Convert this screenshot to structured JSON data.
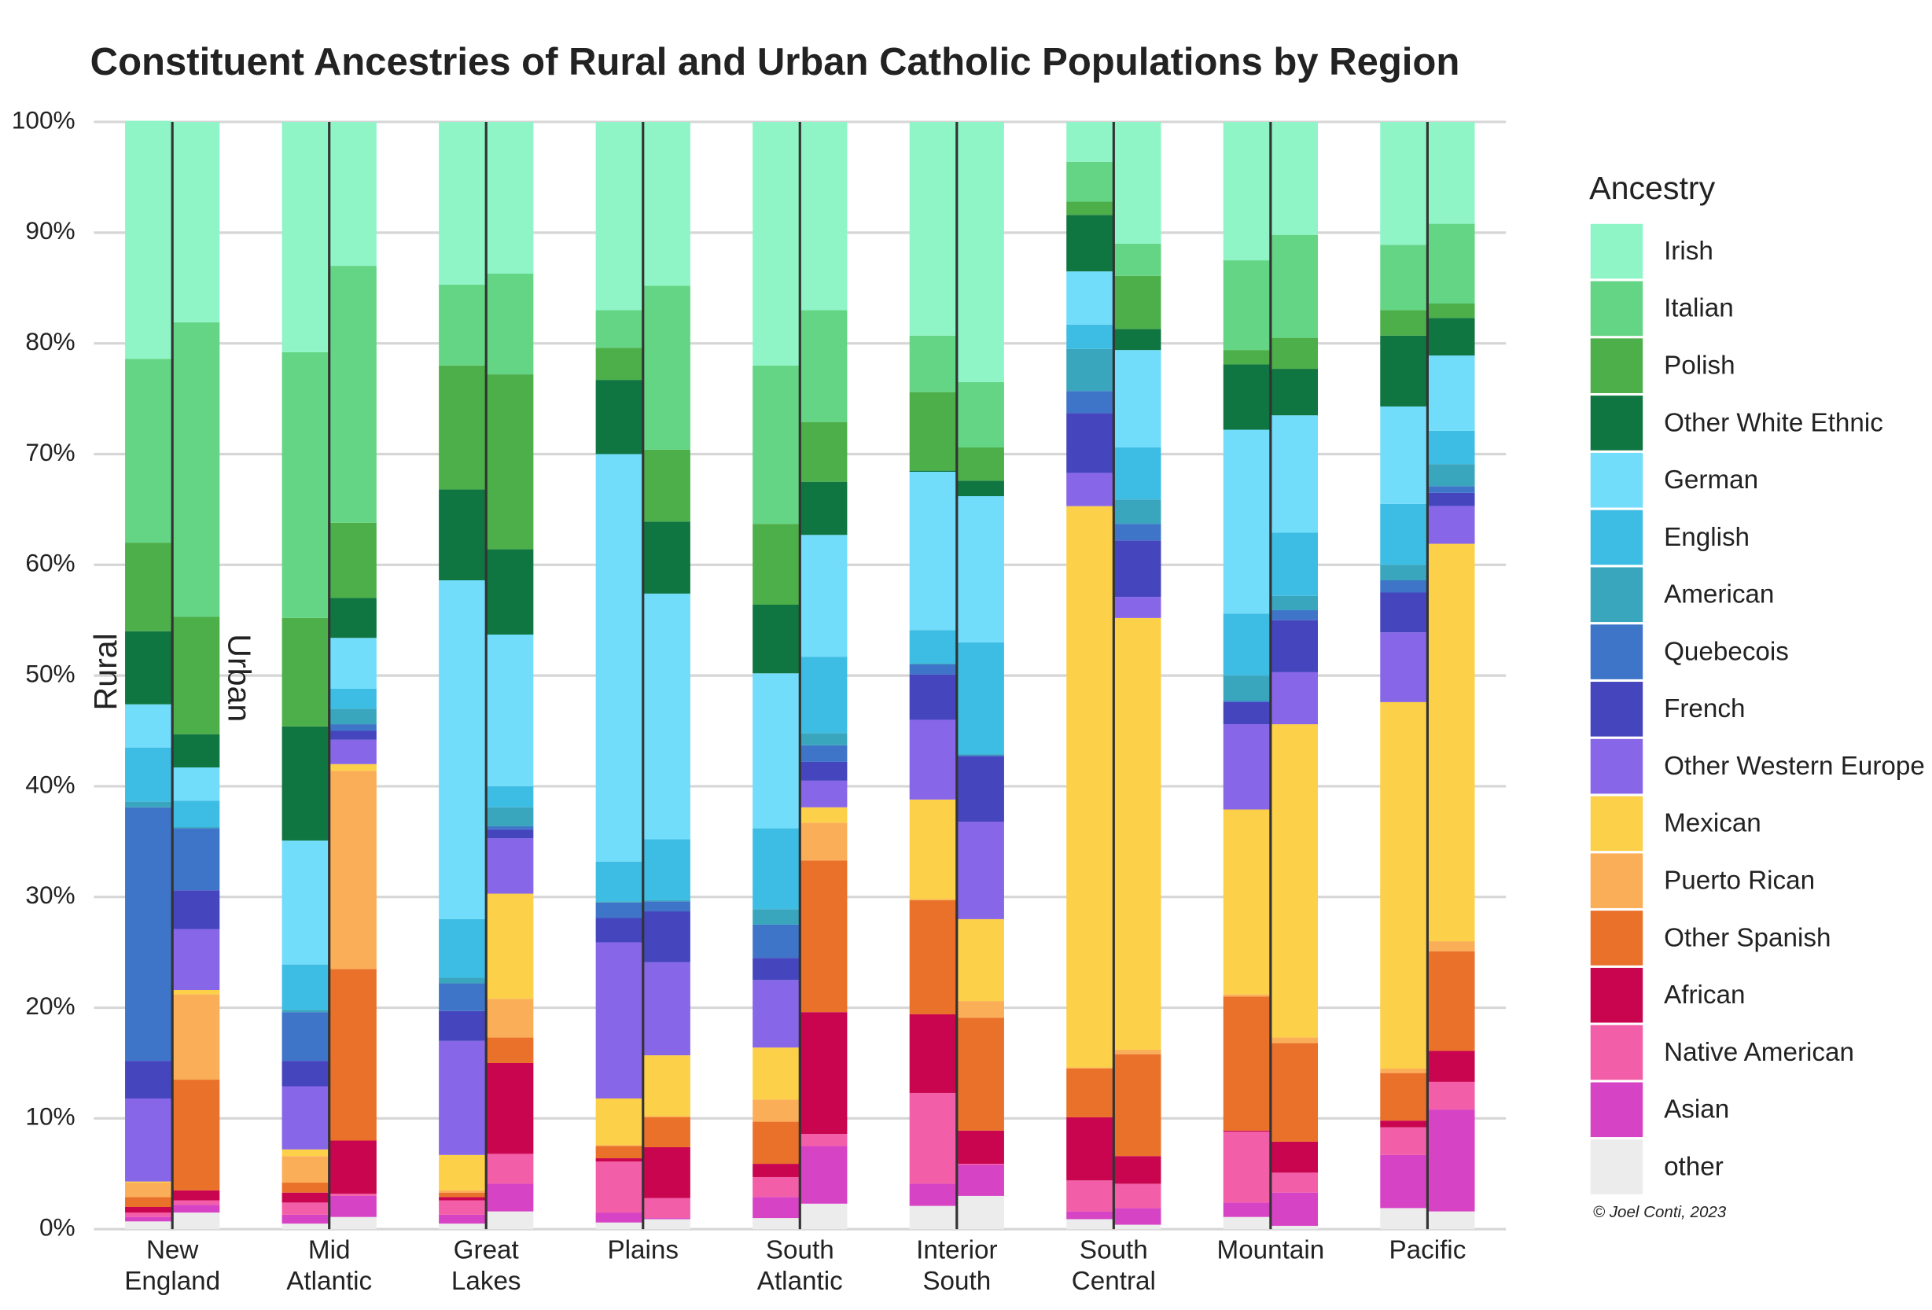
{
  "chart_data": {
    "type": "grouped-stacked-bar",
    "title": "Constituent Ancestries of Rural and Urban Catholic Populations by Region",
    "credit": "© Joel Conti, 2023",
    "legend_title": "Ancestry",
    "bar_labels": [
      "Rural",
      "Urban"
    ],
    "categories": [
      "New England",
      "Mid Atlantic",
      "Great Lakes",
      "Plains",
      "South Atlantic",
      "Interior South",
      "South Central",
      "Mountain",
      "Pacific"
    ],
    "ylim": [
      0,
      100
    ],
    "yticks": [
      {
        "value": 0,
        "label": "0%"
      },
      {
        "value": 10,
        "label": "10%"
      },
      {
        "value": 20,
        "label": "20%"
      },
      {
        "value": 30,
        "label": "30%"
      },
      {
        "value": 40,
        "label": "40%"
      },
      {
        "value": 50,
        "label": "50%"
      },
      {
        "value": 60,
        "label": "60%"
      },
      {
        "value": 70,
        "label": "70%"
      },
      {
        "value": 80,
        "label": "80%"
      },
      {
        "value": 90,
        "label": "90%"
      },
      {
        "value": 100,
        "label": "100%"
      }
    ],
    "grid": true,
    "legend": "right",
    "series": [
      {
        "name": "Irish",
        "color": "#8ff5c7",
        "rural": [
          21.5,
          20.8,
          14.7,
          17.0,
          22.0,
          19.3,
          3.6,
          12.5,
          11.1
        ],
        "urban": [
          18.1,
          13.0,
          13.7,
          14.8,
          17.0,
          23.5,
          11.0,
          10.2,
          9.2
        ]
      },
      {
        "name": "Italian",
        "color": "#64d584",
        "rural": [
          16.6,
          24.0,
          7.3,
          3.4,
          14.3,
          5.1,
          3.6,
          8.1,
          5.9
        ],
        "urban": [
          26.6,
          23.2,
          9.1,
          14.8,
          10.1,
          5.9,
          2.9,
          9.3,
          7.2
        ]
      },
      {
        "name": "Polish",
        "color": "#4daf4a",
        "rural": [
          8.0,
          9.8,
          11.2,
          2.9,
          7.3,
          7.1,
          1.2,
          1.3,
          2.3
        ],
        "urban": [
          10.6,
          6.8,
          15.8,
          6.5,
          5.4,
          3.0,
          4.8,
          2.8,
          1.3
        ]
      },
      {
        "name": "Other White Ethnic",
        "color": "#0f7541",
        "rural": [
          6.6,
          10.3,
          8.2,
          6.7,
          6.2,
          0.1,
          5.1,
          5.9,
          6.4
        ],
        "urban": [
          3.0,
          3.6,
          7.7,
          6.5,
          4.8,
          1.4,
          1.9,
          4.2,
          3.4
        ]
      },
      {
        "name": "German",
        "color": "#72dcfb",
        "rural": [
          3.9,
          11.2,
          30.6,
          36.8,
          14.0,
          14.3,
          4.8,
          16.6,
          8.8
        ],
        "urban": [
          3.0,
          4.6,
          13.7,
          22.2,
          11.0,
          13.2,
          8.8,
          10.6,
          6.8
        ]
      },
      {
        "name": "English",
        "color": "#3dbde4",
        "rural": [
          4.9,
          4.1,
          5.3,
          3.6,
          7.3,
          3.0,
          2.2,
          5.6,
          5.5
        ],
        "urban": [
          2.4,
          1.8,
          1.9,
          5.5,
          6.9,
          10.1,
          4.7,
          5.7,
          3.0
        ]
      },
      {
        "name": "American",
        "color": "#3aa6bd",
        "rural": [
          0.5,
          0.2,
          0.5,
          0.1,
          1.4,
          0.1,
          3.8,
          2.3,
          1.4
        ],
        "urban": [
          0.1,
          1.4,
          1.7,
          0.1,
          1.1,
          0.1,
          2.2,
          1.3,
          2.0
        ]
      },
      {
        "name": "Quebecois",
        "color": "#3e75c9",
        "rural": [
          22.9,
          4.4,
          2.5,
          1.4,
          3.0,
          0.9,
          2.0,
          0.1,
          1.1
        ],
        "urban": [
          5.6,
          0.6,
          0.3,
          0.9,
          1.5,
          0.1,
          1.5,
          0.9,
          0.6
        ]
      },
      {
        "name": "French",
        "color": "#4545bd",
        "rural": [
          3.4,
          2.3,
          2.7,
          2.2,
          2.0,
          4.1,
          5.4,
          2.0,
          3.6
        ],
        "urban": [
          3.5,
          0.8,
          0.8,
          4.6,
          1.7,
          5.9,
          5.1,
          4.7,
          1.2
        ]
      },
      {
        "name": "Other Western Europe",
        "color": "#8866e8",
        "rural": [
          7.5,
          5.7,
          10.3,
          14.1,
          6.1,
          7.2,
          3.0,
          7.7,
          6.3
        ],
        "urban": [
          5.5,
          2.2,
          5.0,
          8.4,
          2.4,
          8.8,
          1.9,
          4.7,
          3.4
        ]
      },
      {
        "name": "Mexican",
        "color": "#fdd04a",
        "rural": [
          0.1,
          0.6,
          3.2,
          4.2,
          4.7,
          9.0,
          50.7,
          16.7,
          33.1
        ],
        "urban": [
          0.4,
          0.6,
          9.5,
          5.5,
          1.4,
          7.4,
          39.0,
          28.3,
          35.9
        ]
      },
      {
        "name": "Puerto Rican",
        "color": "#fbae58",
        "rural": [
          1.3,
          2.4,
          0.2,
          0.1,
          2.0,
          0.1,
          0.1,
          0.2,
          0.4
        ],
        "urban": [
          7.7,
          17.9,
          3.5,
          0.1,
          3.4,
          1.5,
          0.4,
          0.5,
          0.9
        ]
      },
      {
        "name": "Other Spanish",
        "color": "#e9712a",
        "rural": [
          0.9,
          0.9,
          0.4,
          1.1,
          3.8,
          10.3,
          4.4,
          12.1,
          4.3
        ],
        "urban": [
          10.0,
          15.5,
          2.3,
          2.7,
          13.7,
          10.2,
          9.2,
          8.9,
          9.0
        ]
      },
      {
        "name": "African",
        "color": "#c9054f",
        "rural": [
          0.5,
          0.9,
          0.3,
          0.3,
          1.2,
          7.1,
          5.7,
          0.1,
          0.6
        ],
        "urban": [
          0.9,
          4.8,
          8.2,
          4.6,
          11.0,
          3.0,
          2.5,
          2.8,
          2.8
        ]
      },
      {
        "name": "Native American",
        "color": "#f25ea8",
        "rural": [
          0.4,
          1.1,
          1.3,
          4.6,
          1.8,
          8.2,
          2.8,
          6.4,
          2.5
        ],
        "urban": [
          0.4,
          0.2,
          2.7,
          1.8,
          1.1,
          0.1,
          2.2,
          1.8,
          2.5
        ]
      },
      {
        "name": "Asian",
        "color": "#d743c5",
        "rural": [
          0.4,
          0.8,
          0.8,
          0.9,
          1.9,
          2.0,
          0.7,
          1.3,
          4.8
        ],
        "urban": [
          0.7,
          1.9,
          2.5,
          0.1,
          5.2,
          2.8,
          1.5,
          3.0,
          9.2
        ]
      },
      {
        "name": "other",
        "color": "#ececec",
        "rural": [
          0.7,
          0.5,
          0.5,
          0.6,
          1.0,
          2.1,
          0.9,
          1.1,
          1.9
        ],
        "urban": [
          1.5,
          1.1,
          1.6,
          0.9,
          2.3,
          3.0,
          0.4,
          0.3,
          1.6
        ]
      }
    ]
  }
}
